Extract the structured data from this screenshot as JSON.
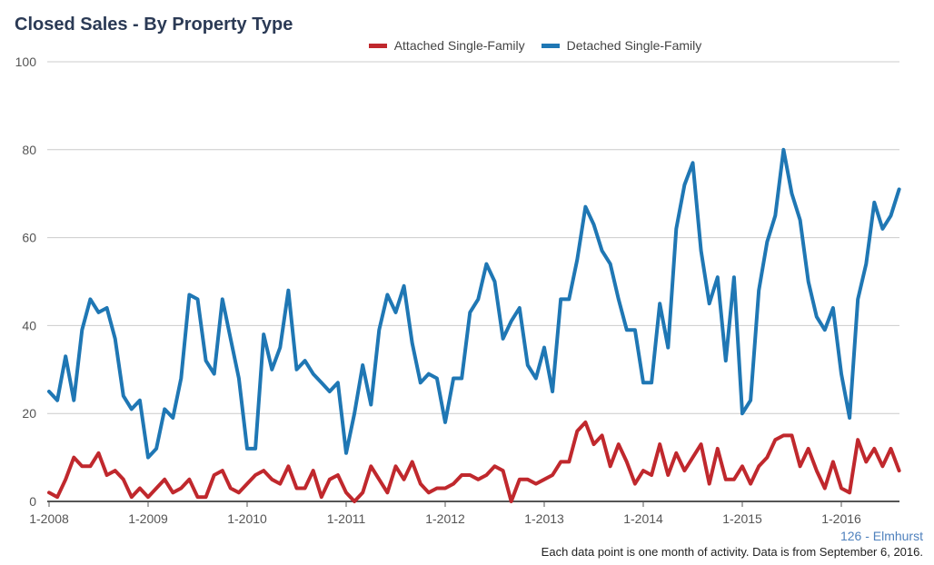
{
  "title": "Closed Sales - By Property Type",
  "region_label": "126 - Elmhurst",
  "footnote": "Each data point is one month of activity. Data is from September 6, 2016.",
  "chart_data": {
    "type": "line",
    "title": "Closed Sales - By Property Type",
    "ylim": [
      0,
      100
    ],
    "y_ticks": [
      "0",
      "20",
      "40",
      "60",
      "80",
      "100"
    ],
    "x_ticks": [
      "1-2008",
      "1-2009",
      "1-2010",
      "1-2011",
      "1-2012",
      "1-2013",
      "1-2014",
      "1-2015",
      "1-2016"
    ],
    "x_start": "1-2008",
    "x_end": "8-2016",
    "grid": true,
    "legend_position": "top",
    "series": [
      {
        "name": "Attached Single-Family",
        "color": "#c0282d",
        "values": [
          2,
          1,
          5,
          10,
          8,
          8,
          11,
          6,
          7,
          5,
          1,
          3,
          1,
          3,
          5,
          2,
          3,
          5,
          1,
          1,
          6,
          7,
          3,
          2,
          4,
          6,
          7,
          5,
          4,
          8,
          3,
          3,
          7,
          1,
          5,
          6,
          2,
          0,
          2,
          8,
          5,
          2,
          8,
          5,
          9,
          4,
          2,
          3,
          3,
          4,
          6,
          6,
          5,
          6,
          8,
          7,
          0,
          5,
          5,
          4,
          5,
          6,
          9,
          9,
          16,
          18,
          13,
          15,
          8,
          13,
          9,
          4,
          7,
          6,
          13,
          6,
          11,
          7,
          10,
          13,
          4,
          12,
          5,
          5,
          8,
          4,
          8,
          10,
          14,
          15,
          15,
          8,
          12,
          7,
          3,
          9,
          3,
          2,
          14,
          9,
          12,
          8,
          12,
          7
        ]
      },
      {
        "name": "Detached Single-Family",
        "color": "#1f77b4",
        "values": [
          25,
          23,
          33,
          23,
          39,
          46,
          43,
          44,
          37,
          24,
          21,
          23,
          10,
          12,
          21,
          19,
          28,
          47,
          46,
          32,
          29,
          46,
          37,
          28,
          12,
          12,
          38,
          30,
          35,
          48,
          30,
          32,
          29,
          27,
          25,
          27,
          11,
          20,
          31,
          22,
          39,
          47,
          43,
          49,
          36,
          27,
          29,
          28,
          18,
          28,
          28,
          43,
          46,
          54,
          50,
          37,
          41,
          44,
          31,
          28,
          35,
          25,
          46,
          46,
          55,
          67,
          63,
          57,
          54,
          46,
          39,
          39,
          27,
          27,
          45,
          35,
          62,
          72,
          77,
          57,
          45,
          51,
          32,
          51,
          20,
          23,
          48,
          59,
          65,
          80,
          70,
          64,
          50,
          42,
          39,
          44,
          29,
          19,
          46,
          54,
          68,
          62,
          65,
          71
        ]
      }
    ]
  }
}
